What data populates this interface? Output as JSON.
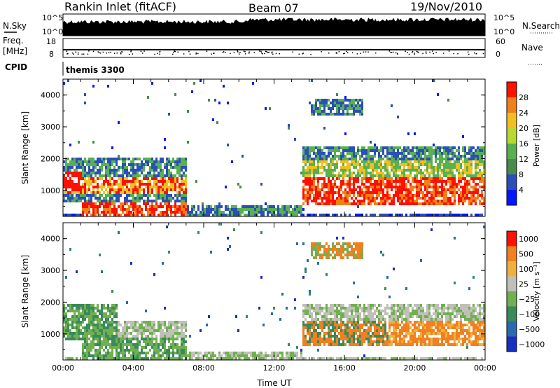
{
  "header": {
    "station": "Rankin Inlet (fitACF)",
    "beam": "Beam 07",
    "date": "19/Nov/2010"
  },
  "stats_panels": {
    "nsky_label": "N.Sky",
    "nsearch_label": "N.Search",
    "nsky_ticks": [
      "10^5",
      "10^0"
    ],
    "nsearch_ticks": [
      "10^5",
      "10^0"
    ],
    "freq_label_top": "Freq.",
    "freq_label_bottom": "[MHz]",
    "freq_ticks": [
      "18",
      "8"
    ],
    "nave_label": "Nave",
    "nave_ticks": [
      "60",
      "0"
    ],
    "cpid_label": "CPID",
    "cpid_value": "themis 3300"
  },
  "chart_data": [
    {
      "type": "heatmap",
      "name": "power",
      "ylabel": "Slant Range [km]",
      "xlabel": "",
      "x_range_hours": [
        0,
        24
      ],
      "ylim": [
        180,
        4500
      ],
      "y_ticks": [
        1000,
        2000,
        3000,
        4000
      ],
      "colorbar_label": "Power [dB]",
      "colorbar_ticks": [
        4,
        8,
        12,
        16,
        20,
        24,
        28
      ],
      "colorbar_range": [
        0,
        30
      ],
      "colors": [
        "#0018ff",
        "#2a4fb8",
        "#4a8a4a",
        "#58b050",
        "#b8d830",
        "#f0c020",
        "#f08018",
        "#ff1000"
      ]
    },
    {
      "type": "heatmap",
      "name": "velocity",
      "ylabel": "Slant Range [km]",
      "xlabel": "Time UT",
      "x_ticks": [
        "00:00",
        "04:00",
        "08:00",
        "12:00",
        "16:00",
        "20:00",
        "00:00"
      ],
      "ylim": [
        180,
        4500
      ],
      "y_ticks": [
        1000,
        2000,
        3000,
        4000
      ],
      "colorbar_label": "Velocity [m s⁻¹]",
      "colorbar_ticks": [
        "1000",
        "500",
        "100",
        "25",
        "−25",
        "−100",
        "−500",
        "−1000"
      ],
      "colors": [
        "#1830c0",
        "#2a6ab0",
        "#3a8a5a",
        "#70b050",
        "#c0c0b8",
        "#f0b040",
        "#f08020",
        "#ff1000"
      ]
    }
  ]
}
